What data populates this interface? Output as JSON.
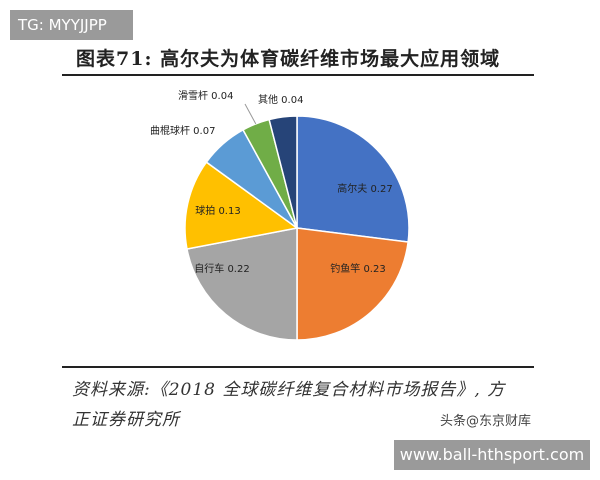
{
  "watermark_top": "TG: MYYJJPP",
  "watermark_bottom": "www.ball-hthsport.com",
  "watermark_logo": "头条@东京财库",
  "source_line1": "资料来源:《2018 全球碳纤维复合材料市场报告》, 方",
  "source_line2": "正证券研究所",
  "chart_data": {
    "type": "pie",
    "title": "图表71:  高尔夫为体育碳纤维市场最大应用领域",
    "categories": [
      "高尔夫",
      "钓鱼竿",
      "自行车",
      "球拍",
      "曲棍球杆",
      "滑雪杆",
      "其他"
    ],
    "values": [
      0.27,
      0.23,
      0.22,
      0.13,
      0.07,
      0.04,
      0.04
    ],
    "colors": [
      "#4472C4",
      "#ED7D31",
      "#A5A5A5",
      "#FFC000",
      "#5B9BD5",
      "#70AD47",
      "#264478"
    ],
    "labels": [
      "高尔夫 0.27",
      "钓鱼竿 0.23",
      "自行车 0.22",
      "球拍 0.13",
      "曲棍球杆 0.07",
      "滑雪杆 0.04",
      "其他 0.04"
    ],
    "start": "top, clockwise",
    "legend": "none"
  }
}
